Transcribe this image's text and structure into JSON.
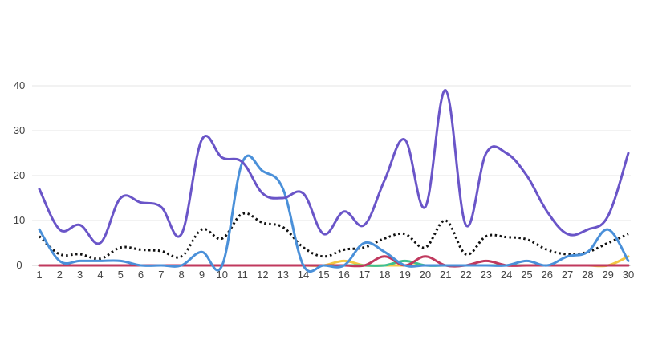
{
  "chart_data": {
    "type": "line",
    "title": "",
    "xlabel": "",
    "ylabel": "",
    "x": [
      1,
      2,
      3,
      4,
      5,
      6,
      7,
      8,
      9,
      10,
      11,
      12,
      13,
      14,
      15,
      16,
      17,
      18,
      19,
      20,
      21,
      22,
      23,
      24,
      25,
      26,
      27,
      28,
      29,
      30
    ],
    "xticks": [
      "1",
      "2",
      "3",
      "4",
      "5",
      "6",
      "7",
      "8",
      "9",
      "10",
      "11",
      "12",
      "13",
      "14",
      "15",
      "16",
      "17",
      "18",
      "19",
      "20",
      "21",
      "22",
      "23",
      "24",
      "25",
      "26",
      "27",
      "28",
      "29",
      "30"
    ],
    "ylim": [
      0,
      40
    ],
    "yticks": [
      "0",
      "10",
      "20",
      "30",
      "40"
    ],
    "grid": true,
    "legend": "none",
    "series": [
      {
        "color": "#6a55c8",
        "style": "solid",
        "values": [
          17,
          8,
          9,
          5,
          15,
          14,
          13,
          7,
          28,
          24,
          23,
          16,
          15,
          16,
          7,
          12,
          9,
          19,
          28,
          13,
          39,
          9,
          25,
          25,
          20,
          12,
          7,
          8,
          11,
          25
        ]
      },
      {
        "color": "#4a90d9",
        "style": "solid",
        "values": [
          8,
          1,
          1,
          1,
          1,
          0,
          0,
          0,
          3,
          0,
          23,
          21,
          17,
          0,
          0,
          0,
          5,
          3,
          0,
          0,
          0,
          0,
          0,
          0,
          1,
          0,
          2,
          3,
          8,
          1
        ]
      },
      {
        "color": "#111111",
        "style": "dotted",
        "values": [
          6.5,
          2.5,
          2.5,
          1.5,
          4,
          3.5,
          3.2,
          2,
          8,
          6,
          11.5,
          9.5,
          8.5,
          4,
          2,
          3.5,
          4,
          6,
          7,
          4,
          10,
          2.5,
          6.5,
          6.3,
          5.8,
          3.5,
          2.5,
          3,
          5,
          7
        ]
      },
      {
        "color": "#c0395e",
        "style": "solid",
        "values": [
          0,
          0,
          0,
          0,
          0,
          0,
          0,
          0,
          0,
          0,
          0,
          0,
          0,
          0,
          0,
          0,
          0,
          2,
          0,
          2,
          0,
          0,
          1,
          0,
          0,
          0,
          0,
          0,
          0,
          0
        ]
      },
      {
        "color": "#3fbf8f",
        "style": "solid",
        "values": [
          0,
          0,
          0,
          0,
          0,
          0,
          0,
          0,
          0,
          0,
          0,
          0,
          0,
          0,
          0,
          0,
          0,
          0,
          1,
          0,
          0,
          0,
          0,
          0,
          0,
          0,
          0,
          0,
          0,
          0
        ]
      },
      {
        "color": "#f2c744",
        "style": "solid",
        "values": [
          0,
          0,
          0,
          0,
          0,
          0,
          0,
          0,
          0,
          0,
          0,
          0,
          0,
          0,
          0,
          1,
          0,
          0,
          0,
          0,
          0,
          0,
          0,
          0,
          0,
          0,
          0,
          0,
          0,
          2
        ]
      }
    ]
  }
}
